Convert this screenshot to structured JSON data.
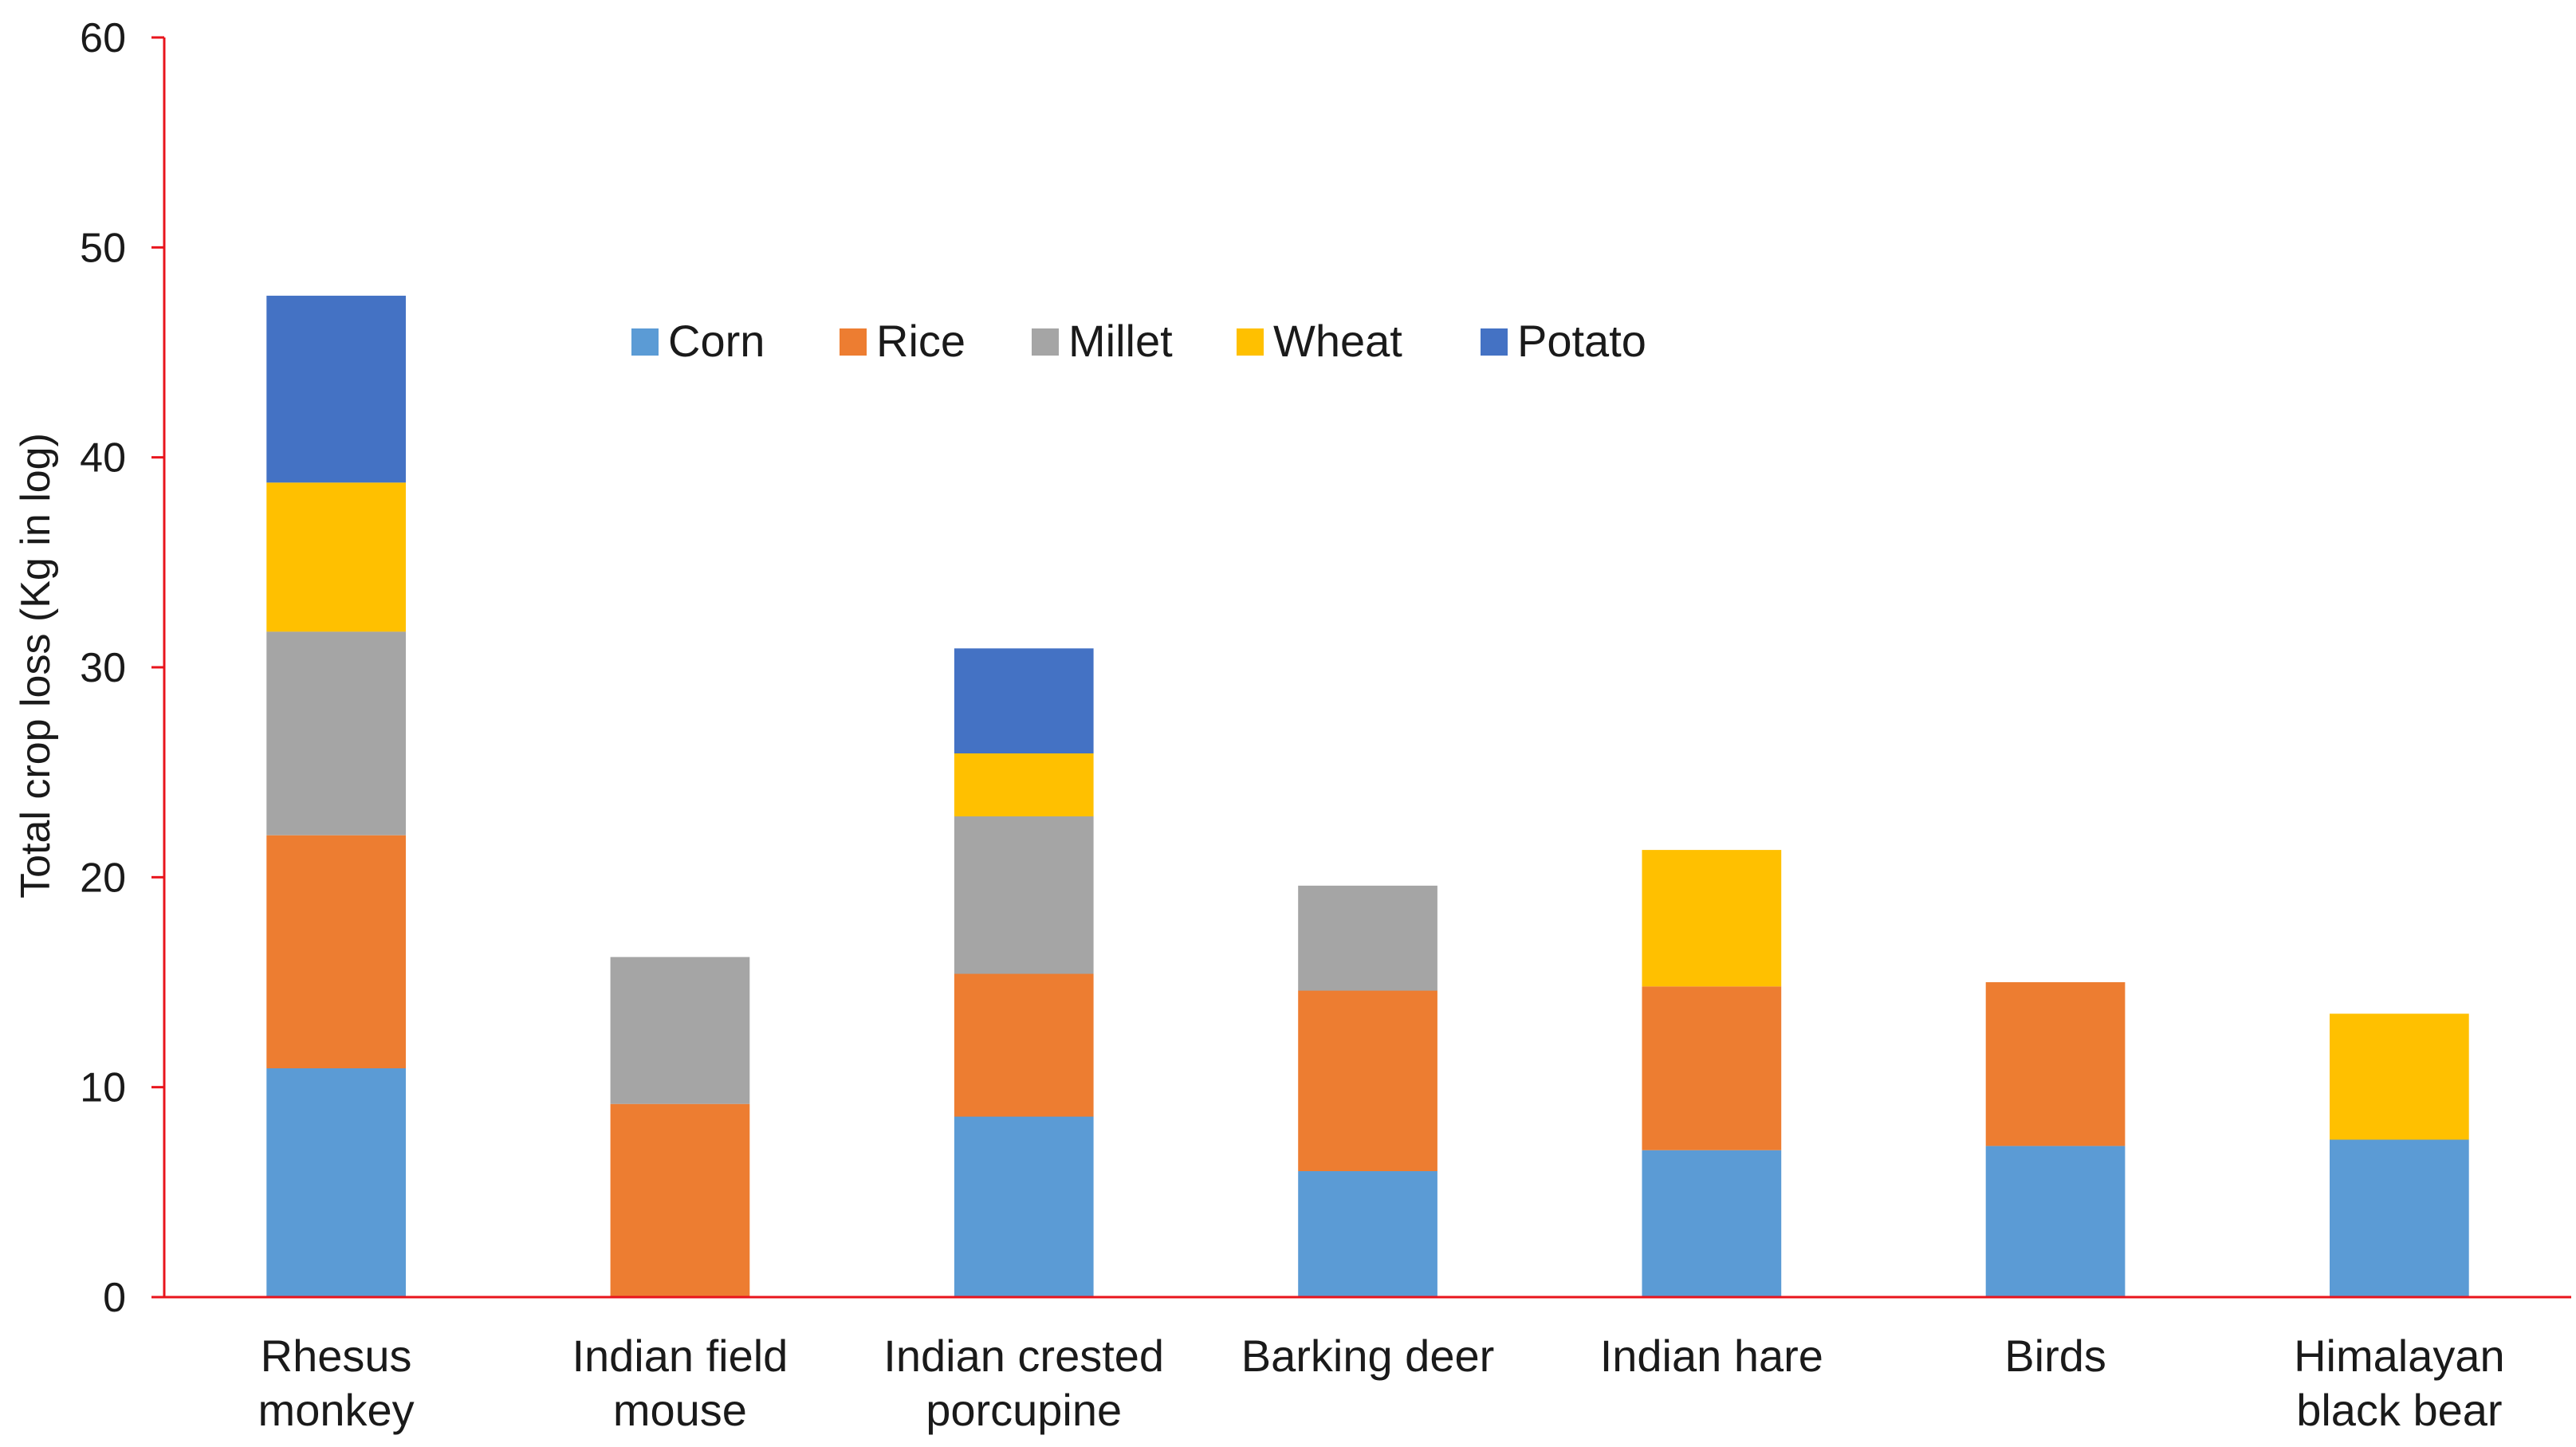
{
  "chart_data": {
    "type": "bar",
    "stacked": true,
    "ylabel": "Total crop loss (Kg in log)",
    "xlabel": "",
    "ylim": [
      0,
      60
    ],
    "yticks": [
      0,
      10,
      20,
      30,
      40,
      50,
      60
    ],
    "grid": false,
    "legend_position": "top-center",
    "axis_color": "#e8141c",
    "categories": [
      [
        "Rhesus",
        "monkey"
      ],
      [
        "Indian field",
        "mouse"
      ],
      [
        "Indian crested",
        "porcupine"
      ],
      [
        "Barking deer"
      ],
      [
        "Indian hare"
      ],
      [
        "Birds"
      ],
      [
        "Himalayan",
        "black bear"
      ]
    ],
    "series": [
      {
        "name": "Corn",
        "color": "#5b9bd5",
        "values": [
          10.9,
          0,
          8.6,
          6.0,
          7.0,
          7.2,
          7.5
        ]
      },
      {
        "name": "Rice",
        "color": "#ed7d31",
        "values": [
          11.1,
          9.2,
          6.8,
          8.6,
          7.8,
          7.8,
          0
        ]
      },
      {
        "name": "Millet",
        "color": "#a5a5a5",
        "values": [
          9.7,
          7.0,
          7.5,
          5.0,
          0,
          0,
          0
        ]
      },
      {
        "name": "Wheat",
        "color": "#ffc000",
        "values": [
          7.1,
          0,
          3.0,
          0,
          6.5,
          0,
          6.0
        ]
      },
      {
        "name": "Potato",
        "color": "#4472c4",
        "values": [
          8.9,
          0,
          5.0,
          0,
          0,
          0,
          0
        ]
      }
    ]
  }
}
